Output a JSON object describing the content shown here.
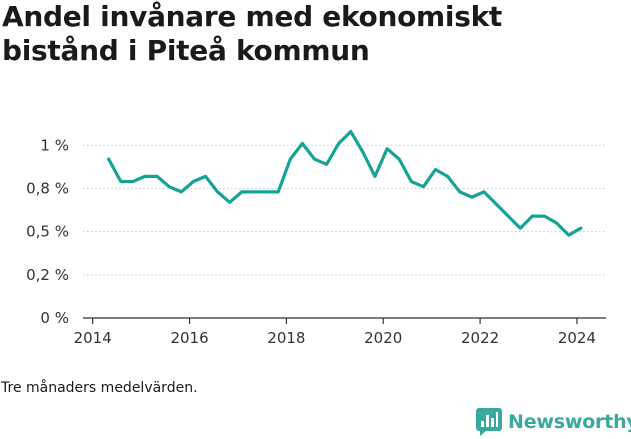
{
  "title": "Andel invånare med ekonomiskt bistånd i Piteå kommun",
  "note": "Tre månaders medelvärden.",
  "brand": {
    "name": "Newsworthy",
    "color": "#3aa89c",
    "icon": "bar-chart-logo-icon"
  },
  "chart_data": {
    "type": "line",
    "title": "",
    "xlabel": "",
    "ylabel": "",
    "xlim": [
      2013.8,
      2024.6
    ],
    "ylim": [
      0,
      1.1
    ],
    "grid": "horizontal",
    "line_color": "#16a396",
    "x_ticks": [
      {
        "value": 2014,
        "label": "2014"
      },
      {
        "value": 2016,
        "label": "2016"
      },
      {
        "value": 2018,
        "label": "2018"
      },
      {
        "value": 2020,
        "label": "2020"
      },
      {
        "value": 2022,
        "label": "2022"
      },
      {
        "value": 2024,
        "label": "2024"
      }
    ],
    "y_ticks": [
      {
        "value": 0,
        "label": "0 %"
      },
      {
        "value": 0.25,
        "label": "0,2 %"
      },
      {
        "value": 0.5,
        "label": "0,5 %"
      },
      {
        "value": 0.75,
        "label": "0,8 %"
      },
      {
        "value": 1.0,
        "label": "1 %"
      }
    ],
    "series": [
      {
        "x": [
          2014.33,
          2014.58,
          2014.83,
          2015.08,
          2015.33,
          2015.58,
          2015.83,
          2016.08,
          2016.33,
          2016.58,
          2016.83,
          2017.08,
          2017.33,
          2017.58,
          2017.83,
          2018.08,
          2018.33,
          2018.58,
          2018.83,
          2019.08,
          2019.33,
          2019.58,
          2019.83,
          2020.08,
          2020.33,
          2020.58,
          2020.83,
          2021.08,
          2021.33,
          2021.58,
          2021.83,
          2022.08,
          2022.33,
          2022.58,
          2022.83,
          2023.08,
          2023.33,
          2023.58,
          2023.83,
          2024.08
        ],
        "values": [
          0.92,
          0.79,
          0.79,
          0.82,
          0.82,
          0.76,
          0.73,
          0.79,
          0.82,
          0.73,
          0.67,
          0.73,
          0.73,
          0.73,
          0.73,
          0.92,
          1.01,
          0.92,
          0.89,
          1.01,
          1.08,
          0.96,
          0.82,
          0.98,
          0.92,
          0.79,
          0.76,
          0.86,
          0.82,
          0.73,
          0.7,
          0.73,
          0.66,
          0.59,
          0.52,
          0.59,
          0.59,
          0.55,
          0.48,
          0.52
        ]
      }
    ]
  }
}
